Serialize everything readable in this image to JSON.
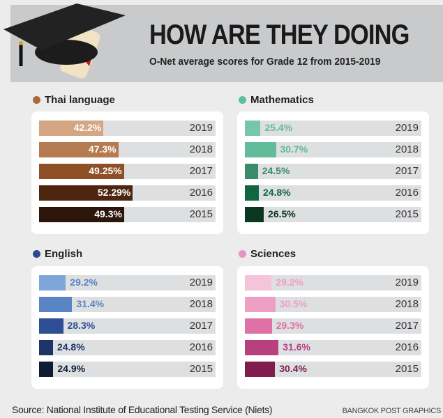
{
  "header": {
    "title": "HOW ARE THEY DOING",
    "subtitle": "O-Net average scores for Grade 12 from 2015-2019"
  },
  "chart_data": [
    {
      "type": "bar",
      "title": "Thai language",
      "color": "#a8693f",
      "categories": [
        "2019",
        "2018",
        "2017",
        "2016",
        "2015"
      ],
      "values": [
        42.2,
        47.3,
        49.25,
        52.29,
        49.3
      ],
      "labels": [
        "42.2%",
        "47.3%",
        "49.25%",
        "52.29%",
        "49.3%"
      ],
      "bar_colors": [
        "#d4a683",
        "#b57a4f",
        "#8e4f26",
        "#4e2610",
        "#2c150b"
      ],
      "label_inside": true
    },
    {
      "type": "bar",
      "title": "Mathematics",
      "color": "#5fbf9c",
      "categories": [
        "2019",
        "2018",
        "2017",
        "2016",
        "2015"
      ],
      "values": [
        25.4,
        30.7,
        24.5,
        24.8,
        26.5
      ],
      "labels": [
        "25.4%",
        "30.7%",
        "24.5%",
        "24.8%",
        "26.5%"
      ],
      "bar_colors": [
        "#76c7a9",
        "#62bb9a",
        "#3a8b6a",
        "#10663e",
        "#0b3820"
      ],
      "label_inside": false
    },
    {
      "type": "bar",
      "title": "English",
      "color": "#2a4a8c",
      "categories": [
        "2019",
        "2018",
        "2017",
        "2016",
        "2015"
      ],
      "values": [
        29.2,
        31.4,
        28.3,
        24.8,
        24.9
      ],
      "labels": [
        "29.2%",
        "31.4%",
        "28.3%",
        "24.8%",
        "24.9%"
      ],
      "bar_colors": [
        "#7fa6da",
        "#5a85c4",
        "#2e4e96",
        "#1d3566",
        "#0d1b34"
      ],
      "label_inside": false
    },
    {
      "type": "bar",
      "title": "Sciences",
      "color": "#e795bf",
      "categories": [
        "2019",
        "2018",
        "2017",
        "2016",
        "2015"
      ],
      "values": [
        29.2,
        30.5,
        29.3,
        31.6,
        30.4
      ],
      "labels": [
        "29.2%",
        "30.5%",
        "29.3%",
        "31.6%",
        "30.4%"
      ],
      "bar_colors": [
        "#f5c4da",
        "#ee9fc4",
        "#de72a7",
        "#b8407f",
        "#7e1d4e"
      ],
      "label_inside": false
    }
  ],
  "footer": {
    "source": "Source: National Institute of Educational Testing Service (Niets)",
    "credit": "BANGKOK POST GRAPHICS"
  }
}
